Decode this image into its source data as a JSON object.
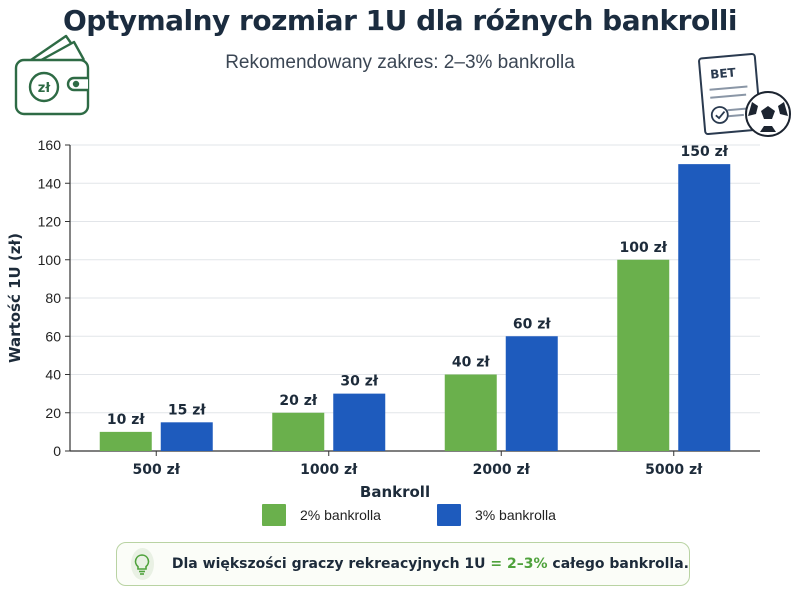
{
  "chart_data": {
    "type": "bar",
    "title": "Optymalny rozmiar 1U dla różnych bankrolli",
    "subtitle": "Rekomendowany zakres: 2–3% bankrolla",
    "xlabel": "Bankroll",
    "ylabel": "Wartość 1U (zł)",
    "ylim": [
      0,
      160
    ],
    "yticks": [
      "0",
      "20",
      "40",
      "60",
      "80",
      "100",
      "120",
      "140",
      "160"
    ],
    "grid": true,
    "legend_position": "bottom",
    "categories": [
      "500 zł",
      "1000 zł",
      "2000 zł",
      "5000 zł"
    ],
    "series": [
      {
        "name": "2% bankrolla",
        "color": "#6ab04c",
        "values": [
          10,
          20,
          40,
          100
        ],
        "labels": [
          "10 zł",
          "20 zł",
          "40 zł",
          "100 zł"
        ]
      },
      {
        "name": "3% bankrolla",
        "color": "#1e5bbd",
        "values": [
          15,
          30,
          60,
          150
        ],
        "labels": [
          "15 zł",
          "30 zł",
          "60 zł",
          "150 zł"
        ]
      }
    ]
  },
  "callout": {
    "text_before": "Dla większości graczy rekreacyjnych 1U",
    "highlight": "= 2–3%",
    "text_after": "całego bankrolla."
  },
  "decorations": {
    "wallet_icon": "wallet-icon",
    "wallet_currency": "zł",
    "ticket_icon": "bet-ticket-icon",
    "ticket_text": "BET",
    "ball_icon": "soccer-ball-icon",
    "bulb_icon": "lightbulb-icon"
  }
}
